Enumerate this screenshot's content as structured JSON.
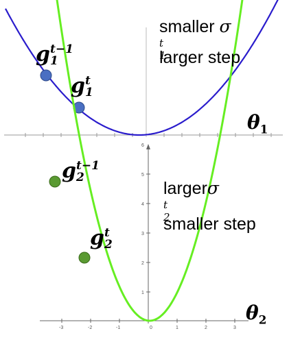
{
  "panel_top": {
    "point_prev": {
      "base": "g",
      "sub": "1",
      "sup": "t−1"
    },
    "point_curr": {
      "base": "g",
      "sub": "1",
      "sup": "t"
    },
    "note_line1_word": "smaller",
    "note_sigma": {
      "base": "σ",
      "sub": "1",
      "sup": "t"
    },
    "note_line2": "larger step",
    "axis_label": {
      "base": "θ",
      "sub": "1"
    },
    "curve_color": "#2a1ccc",
    "point_color": "#4a6fc2"
  },
  "panel_bottom": {
    "point_prev": {
      "base": "g",
      "sub": "2",
      "sup": "t−1"
    },
    "point_curr": {
      "base": "g",
      "sub": "2",
      "sup": "t"
    },
    "note_line1_word": "larger",
    "note_sigma": {
      "base": "σ",
      "sub": "2",
      "sup": "t"
    },
    "note_line2": "smaller step",
    "axis_label": {
      "base": "θ",
      "sub": "2"
    },
    "curve_color": "#66ee22",
    "point_color": "#5a9a32",
    "y_ticks": [
      "1",
      "2",
      "3",
      "4",
      "5",
      "6"
    ],
    "x_ticks": [
      "-3",
      "-2",
      "-1",
      "0",
      "1",
      "2",
      "3"
    ]
  }
}
